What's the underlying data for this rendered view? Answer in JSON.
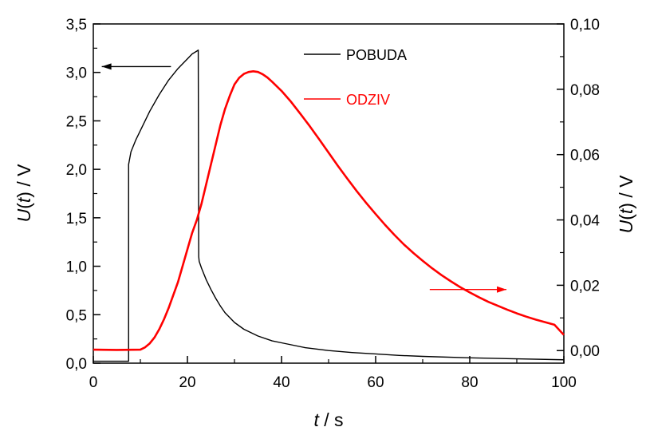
{
  "chart_data": {
    "type": "line",
    "x_axis": {
      "label_italic": "t",
      "label_rest": " / s",
      "range": [
        0,
        100
      ],
      "ticks": [
        0,
        20,
        40,
        60,
        80,
        100
      ],
      "tick_labels": [
        "0",
        "20",
        "40",
        "60",
        "80",
        "100"
      ]
    },
    "y_left": {
      "label_italic1": "U",
      "label_mid": "(",
      "label_italic2": "t",
      "label_rest": ") / V",
      "range": [
        0,
        3.5
      ],
      "ticks": [
        0,
        0.5,
        1.0,
        1.5,
        2.0,
        2.5,
        3.0,
        3.5
      ],
      "tick_labels": [
        "0,0",
        "0,5",
        "1,0",
        "1,5",
        "2,0",
        "2,5",
        "3,0",
        "3,5"
      ]
    },
    "y_right": {
      "label_italic1": "U",
      "label_mid": "(",
      "label_italic2": "t",
      "label_rest": ") / V",
      "range": [
        -0.00385,
        0.1
      ],
      "ticks": [
        0,
        0.02,
        0.04,
        0.06,
        0.08,
        0.1
      ],
      "tick_labels": [
        "0,00",
        "0,02",
        "0,04",
        "0,06",
        "0,08",
        "0,10"
      ]
    },
    "legend": {
      "placement": "top-center",
      "entries": [
        {
          "name": "POBUDA",
          "color": "#000000",
          "text_color": "#000000"
        },
        {
          "name": "ODZIV",
          "color": "#ff0000",
          "text_color": "#ff0000"
        }
      ]
    },
    "annotations": [
      {
        "type": "arrow",
        "direction": "left",
        "points_to": "left-axis",
        "color": "#000000",
        "from": {
          "x": 16.5,
          "y_left": 3.06
        },
        "to": {
          "x": 1.8,
          "y_left": 3.06
        }
      },
      {
        "type": "arrow",
        "direction": "right",
        "points_to": "right-axis",
        "color": "#ff0000",
        "from": {
          "x": 71.5,
          "y_left": 0.76
        },
        "to": {
          "x": 87.8,
          "y_left": 0.76
        }
      }
    ],
    "series": [
      {
        "name": "POBUDA",
        "axis": "left",
        "color": "#000000",
        "x": [
          0,
          7.5,
          7.5,
          8,
          9,
          10,
          12,
          14,
          16,
          18,
          20,
          21,
          22,
          22.3,
          22.4,
          22.5,
          23,
          24,
          25,
          26,
          27,
          28,
          30,
          32,
          35,
          38,
          40,
          45,
          50,
          55,
          60,
          65,
          70,
          80,
          90,
          100
        ],
        "y": [
          0.02,
          0.02,
          2.05,
          2.18,
          2.3,
          2.4,
          2.6,
          2.77,
          2.92,
          3.04,
          3.14,
          3.19,
          3.22,
          3.23,
          1.1,
          1.05,
          0.98,
          0.86,
          0.76,
          0.67,
          0.59,
          0.52,
          0.42,
          0.35,
          0.28,
          0.23,
          0.21,
          0.16,
          0.13,
          0.11,
          0.095,
          0.08,
          0.07,
          0.055,
          0.045,
          0.035
        ]
      },
      {
        "name": "ODZIV",
        "axis": "right",
        "color": "#ff0000",
        "x": [
          0,
          5,
          10,
          11,
          12,
          13,
          14,
          15,
          16,
          17,
          18,
          19,
          20,
          21,
          22,
          23,
          24,
          25,
          26,
          27,
          28,
          29,
          30,
          31,
          32,
          33,
          34,
          35,
          36,
          37,
          38,
          40,
          42,
          44,
          46,
          48,
          50,
          52,
          54,
          56,
          58,
          60,
          62,
          64,
          66,
          68,
          70,
          72,
          74,
          76,
          78,
          80,
          82,
          84,
          86,
          88,
          90,
          92,
          94,
          96,
          98,
          100
        ],
        "y": [
          0.0003,
          0.0002,
          0.0003,
          0.001,
          0.0022,
          0.004,
          0.0065,
          0.0095,
          0.013,
          0.017,
          0.021,
          0.026,
          0.031,
          0.036,
          0.04,
          0.045,
          0.051,
          0.057,
          0.063,
          0.069,
          0.074,
          0.078,
          0.0815,
          0.0835,
          0.0847,
          0.0853,
          0.0855,
          0.0853,
          0.0846,
          0.0836,
          0.0823,
          0.0795,
          0.0762,
          0.0725,
          0.0687,
          0.0647,
          0.0606,
          0.0565,
          0.0526,
          0.0488,
          0.0452,
          0.0418,
          0.0385,
          0.0354,
          0.0325,
          0.0299,
          0.0275,
          0.0252,
          0.0231,
          0.0212,
          0.0194,
          0.0178,
          0.0163,
          0.0149,
          0.0137,
          0.0125,
          0.0114,
          0.0104,
          0.0095,
          0.0087,
          0.0079,
          0.0048
        ]
      }
    ]
  }
}
